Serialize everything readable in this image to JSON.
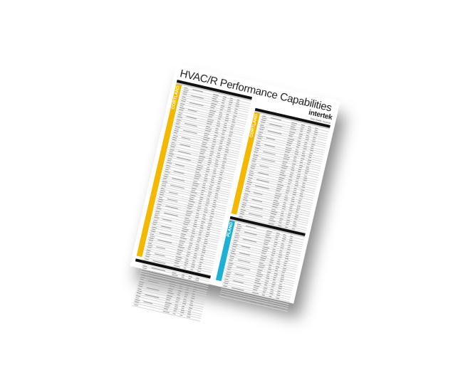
{
  "document": {
    "title": "HVAC/R Performance Capabilities",
    "logo": {
      "name": "intertek",
      "tagline": "Total Quality. Assured."
    },
    "sections": [
      {
        "label": "CORTLAND",
        "color": "#f5b800"
      },
      {
        "label": "CORTLAND",
        "color": "#f5b800"
      },
      {
        "label": "PLANO",
        "color": "#1fb0d6"
      }
    ]
  }
}
